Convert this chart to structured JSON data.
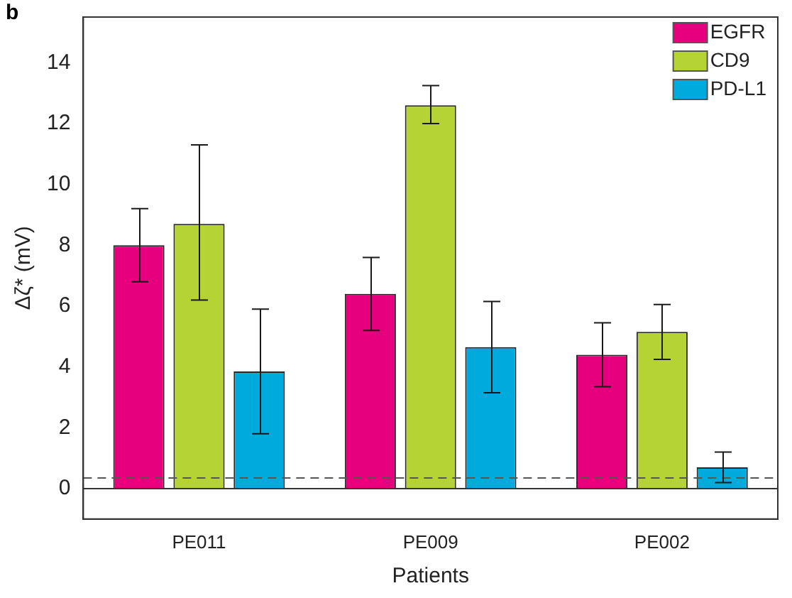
{
  "chart_data": {
    "type": "bar",
    "ylabel": "Δζ* (mV)",
    "xlabel": "Patients",
    "categories": [
      "PE011",
      "PE009",
      "PE002"
    ],
    "series": [
      {
        "name": "EGFR",
        "color": "#e6007e",
        "values": [
          8.0,
          6.4,
          4.4
        ],
        "errors": [
          [
            6.8,
            9.2
          ],
          [
            5.2,
            7.6
          ],
          [
            3.35,
            5.45
          ]
        ]
      },
      {
        "name": "CD9",
        "color": "#b5d334",
        "values": [
          8.7,
          12.6,
          5.15
        ],
        "errors": [
          [
            6.2,
            11.3
          ],
          [
            12.0,
            13.25
          ],
          [
            4.25,
            6.05
          ]
        ]
      },
      {
        "name": "PD-L1",
        "color": "#00aadd",
        "values": [
          3.85,
          4.65,
          0.7
        ],
        "errors": [
          [
            1.8,
            5.9
          ],
          [
            3.15,
            6.15
          ],
          [
            0.2,
            1.2
          ]
        ]
      }
    ],
    "ylim": [
      -1,
      15.5
    ],
    "yticks": [
      0,
      2,
      4,
      6,
      8,
      10,
      12,
      14
    ],
    "grid": false,
    "legend": "top right",
    "ref_lines": [
      {
        "axis": "y",
        "value": 0,
        "line_style": "solid",
        "color": "#333333"
      },
      {
        "axis": "y",
        "value": 0.35,
        "line_style": "dashed",
        "color": "#555555"
      }
    ],
    "annotations": [
      "b"
    ]
  }
}
